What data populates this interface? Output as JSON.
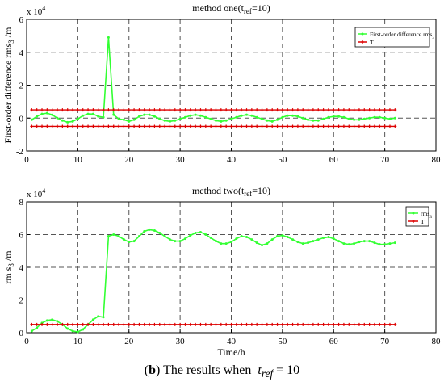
{
  "caption": {
    "label": "b",
    "text": "The results when",
    "var": "t",
    "sub": "ref",
    "eq": "= 10"
  },
  "colors": {
    "green": "#33ff33",
    "red": "#dd0000"
  },
  "chart_data": [
    {
      "type": "line",
      "title": "method one(t_ref=10)",
      "title_main": "method one(t",
      "title_sub": "ref",
      "title_end": "=10)",
      "multiplier": "x 10",
      "multiplier_exp": "4",
      "xlabel": "",
      "ylabel": "First-order difference rms_3 /m",
      "ylabel_main": "First-order difference rms",
      "ylabel_sub": "3",
      "ylabel_end": " /m",
      "xlim": [
        0,
        80
      ],
      "ylim": [
        -2,
        6
      ],
      "x_ticks": [
        "0",
        "10",
        "20",
        "30",
        "40",
        "50",
        "60",
        "70",
        "80"
      ],
      "y_ticks": [
        "-2",
        "0",
        "2",
        "4",
        "6"
      ],
      "grid": true,
      "legend_position": "top-right",
      "series": [
        {
          "name": "First-order difference rms_3",
          "legend_main": "First-order difference rms",
          "legend_sub": "3",
          "color": "#33ff33",
          "x": [
            1,
            2,
            3,
            4,
            5,
            6,
            7,
            8,
            9,
            10,
            11,
            12,
            13,
            14,
            15,
            16,
            17,
            18,
            19,
            20,
            21,
            22,
            23,
            24,
            25,
            26,
            27,
            28,
            29,
            30,
            31,
            32,
            33,
            34,
            35,
            36,
            37,
            38,
            39,
            40,
            41,
            42,
            43,
            44,
            45,
            46,
            47,
            48,
            49,
            50,
            51,
            52,
            53,
            54,
            55,
            56,
            57,
            58,
            59,
            60,
            61,
            62,
            63,
            64,
            65,
            66,
            67,
            68,
            69,
            70,
            71,
            72
          ],
          "values": [
            -0.1,
            0.1,
            0.25,
            0.3,
            0.2,
            0.0,
            -0.15,
            -0.25,
            -0.2,
            -0.05,
            0.15,
            0.25,
            0.25,
            0.1,
            0.05,
            4.9,
            0.2,
            -0.05,
            -0.1,
            -0.2,
            -0.1,
            0.1,
            0.2,
            0.2,
            0.1,
            -0.05,
            -0.15,
            -0.2,
            -0.15,
            -0.05,
            0.05,
            0.15,
            0.2,
            0.15,
            0.05,
            -0.05,
            -0.15,
            -0.2,
            -0.15,
            -0.05,
            0.05,
            0.15,
            0.2,
            0.15,
            0.05,
            -0.05,
            -0.15,
            -0.2,
            -0.1,
            0.05,
            0.15,
            0.15,
            0.1,
            0.0,
            -0.1,
            -0.15,
            -0.15,
            -0.05,
            0.05,
            0.1,
            0.1,
            0.05,
            -0.05,
            -0.1,
            -0.1,
            -0.05,
            0.0,
            0.05,
            0.05,
            0.0,
            -0.05,
            0.0
          ]
        },
        {
          "name": "T",
          "color": "#dd0000",
          "x": [
            1,
            2,
            3,
            4,
            5,
            6,
            7,
            8,
            9,
            10,
            11,
            12,
            13,
            14,
            15,
            16,
            17,
            18,
            19,
            20,
            21,
            22,
            23,
            24,
            25,
            26,
            27,
            28,
            29,
            30,
            31,
            32,
            33,
            34,
            35,
            36,
            37,
            38,
            39,
            40,
            41,
            42,
            43,
            44,
            45,
            46,
            47,
            48,
            49,
            50,
            51,
            52,
            53,
            54,
            55,
            56,
            57,
            58,
            59,
            60,
            61,
            62,
            63,
            64,
            65,
            66,
            67,
            68,
            69,
            70,
            71,
            72
          ],
          "values": 0.5,
          "mirror": true
        }
      ]
    },
    {
      "type": "line",
      "title": "method two(t_ref=10)",
      "title_main": "method two(t",
      "title_sub": "ref",
      "title_end": "=10)",
      "multiplier": "x 10",
      "multiplier_exp": "4",
      "xlabel": "Time/h",
      "ylabel": "rms_3 /m",
      "ylabel_main": "rm s",
      "ylabel_sub": "3",
      "ylabel_end": " /m",
      "xlim": [
        0,
        80
      ],
      "ylim": [
        0,
        8
      ],
      "x_ticks": [
        "0",
        "10",
        "20",
        "30",
        "40",
        "50",
        "60",
        "70",
        "80"
      ],
      "y_ticks": [
        "0",
        "2",
        "4",
        "6",
        "8"
      ],
      "grid": true,
      "legend_position": "top-right",
      "series": [
        {
          "name": "rms_3",
          "legend_main": "rms",
          "legend_sub": "3",
          "color": "#33ff33",
          "x": [
            1,
            2,
            3,
            4,
            5,
            6,
            7,
            8,
            9,
            10,
            11,
            12,
            13,
            14,
            15,
            16,
            17,
            18,
            19,
            20,
            21,
            22,
            23,
            24,
            25,
            26,
            27,
            28,
            29,
            30,
            31,
            32,
            33,
            34,
            35,
            36,
            37,
            38,
            39,
            40,
            41,
            42,
            43,
            44,
            45,
            46,
            47,
            48,
            49,
            50,
            51,
            52,
            53,
            54,
            55,
            56,
            57,
            58,
            59,
            60,
            61,
            62,
            63,
            64,
            65,
            66,
            67,
            68,
            69,
            70,
            71,
            72
          ],
          "values": [
            0.1,
            0.3,
            0.6,
            0.75,
            0.8,
            0.7,
            0.5,
            0.25,
            0.1,
            0.05,
            0.2,
            0.5,
            0.8,
            1.0,
            0.95,
            5.9,
            6.0,
            5.9,
            5.7,
            5.55,
            5.6,
            5.9,
            6.2,
            6.3,
            6.25,
            6.1,
            5.9,
            5.7,
            5.6,
            5.6,
            5.75,
            5.95,
            6.1,
            6.15,
            6.0,
            5.8,
            5.6,
            5.45,
            5.45,
            5.55,
            5.75,
            5.9,
            5.85,
            5.7,
            5.5,
            5.35,
            5.45,
            5.7,
            5.9,
            5.95,
            5.85,
            5.7,
            5.55,
            5.45,
            5.5,
            5.6,
            5.7,
            5.8,
            5.85,
            5.75,
            5.6,
            5.45,
            5.4,
            5.45,
            5.55,
            5.6,
            5.6,
            5.5,
            5.4,
            5.4,
            5.45,
            5.5
          ]
        },
        {
          "name": "T",
          "color": "#dd0000",
          "x": [
            1,
            2,
            3,
            4,
            5,
            6,
            7,
            8,
            9,
            10,
            11,
            12,
            13,
            14,
            15,
            16,
            17,
            18,
            19,
            20,
            21,
            22,
            23,
            24,
            25,
            26,
            27,
            28,
            29,
            30,
            31,
            32,
            33,
            34,
            35,
            36,
            37,
            38,
            39,
            40,
            41,
            42,
            43,
            44,
            45,
            46,
            47,
            48,
            49,
            50,
            51,
            52,
            53,
            54,
            55,
            56,
            57,
            58,
            59,
            60,
            61,
            62,
            63,
            64,
            65,
            66,
            67,
            68,
            69,
            70,
            71,
            72
          ],
          "values": 0.5
        }
      ]
    }
  ]
}
